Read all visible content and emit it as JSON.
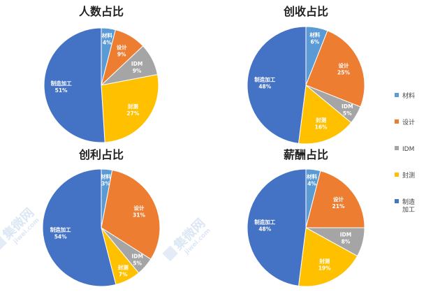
{
  "colors": {
    "材料": "#5b9bd5",
    "设计": "#ed7d31",
    "IDM": "#a5a5a5",
    "封测": "#ffc000",
    "制造加工": "#4472c4"
  },
  "legend": {
    "items": [
      {
        "label": "材料",
        "color": "#5b9bd5"
      },
      {
        "label": "设计",
        "color": "#ed7d31"
      },
      {
        "label": "IDM",
        "color": "#a5a5a5"
      },
      {
        "label": "封测",
        "color": "#ffc000"
      },
      {
        "label": "制造加工",
        "color": "#4472c4"
      }
    ]
  },
  "watermark": {
    "text": "集微网",
    "url": "jiwei.com"
  },
  "chart_data": [
    {
      "type": "pie",
      "title": "人数占比",
      "slices": [
        {
          "label": "材料",
          "value": 4,
          "display": "4%"
        },
        {
          "label": "设计",
          "value": 9,
          "display": "9%"
        },
        {
          "label": "IDM",
          "value": 9,
          "display": "9%"
        },
        {
          "label": "封测",
          "value": 27,
          "display": "27%"
        },
        {
          "label": "制造加工",
          "value": 51,
          "display": "51%"
        }
      ]
    },
    {
      "type": "pie",
      "title": "创收占比",
      "slices": [
        {
          "label": "材料",
          "value": 6,
          "display": "6%"
        },
        {
          "label": "设计",
          "value": 25,
          "display": "25%"
        },
        {
          "label": "IDM",
          "value": 5,
          "display": "5%"
        },
        {
          "label": "封测",
          "value": 16,
          "display": "16%"
        },
        {
          "label": "制造加工",
          "value": 48,
          "display": "48%"
        }
      ]
    },
    {
      "type": "pie",
      "title": "创利占比",
      "slices": [
        {
          "label": "材料",
          "value": 3,
          "display": "3%"
        },
        {
          "label": "设计",
          "value": 31,
          "display": "31%"
        },
        {
          "label": "IDM",
          "value": 5,
          "display": "5%"
        },
        {
          "label": "封测",
          "value": 7,
          "display": "7%"
        },
        {
          "label": "制造加工",
          "value": 54,
          "display": "54%"
        }
      ]
    },
    {
      "type": "pie",
      "title": "薪酬占比",
      "slices": [
        {
          "label": "材料",
          "value": 4,
          "display": "4%"
        },
        {
          "label": "设计",
          "value": 21,
          "display": "21%"
        },
        {
          "label": "IDM",
          "value": 8,
          "display": "8%"
        },
        {
          "label": "封测",
          "value": 19,
          "display": "19%"
        },
        {
          "label": "制造加工",
          "value": 48,
          "display": "48%"
        }
      ]
    }
  ]
}
